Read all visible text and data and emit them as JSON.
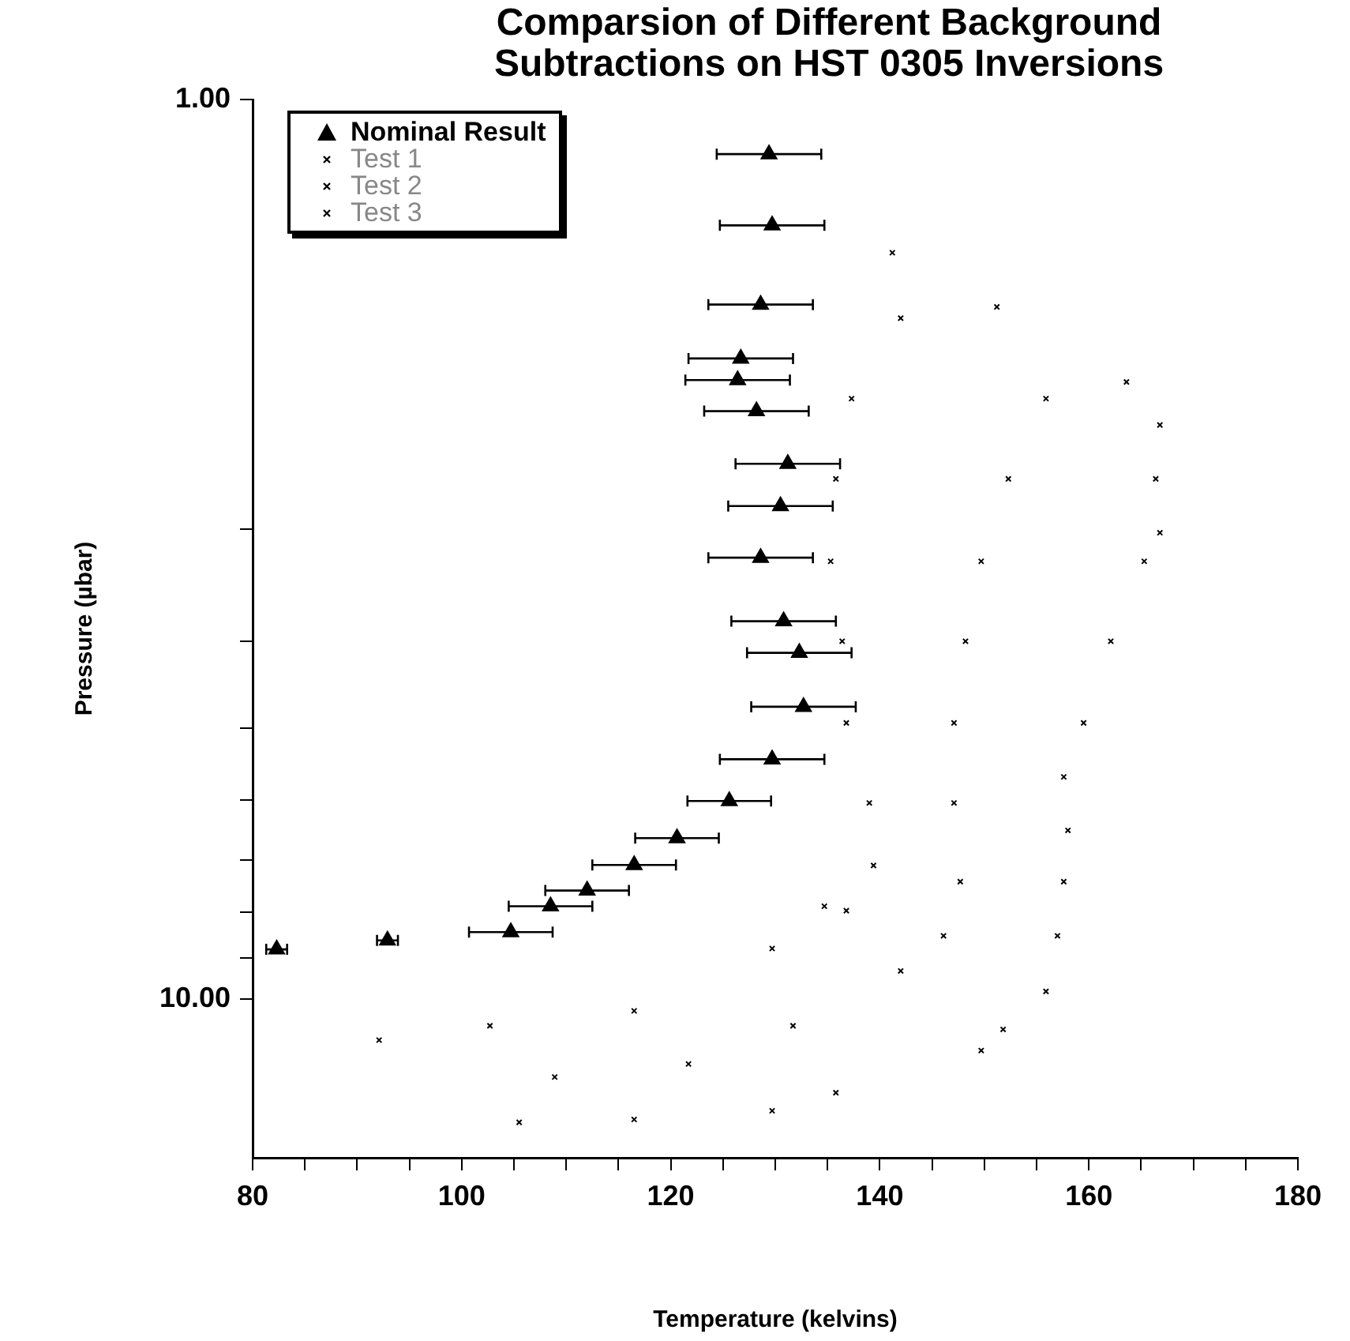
{
  "chart_data": {
    "type": "scatter",
    "title": "Comparsion of Different Background Subtractions on HST 0305 Inversions",
    "xlabel": "Temperature (kelvins)",
    "ylabel": "Pressure (µbar)",
    "xlim": [
      80,
      180
    ],
    "xticks": [
      80,
      {
        "value": 85,
        "label": null
      },
      {
        "value": 90,
        "label": null
      },
      {
        "value": 95,
        "label": null
      },
      100,
      {
        "value": 105,
        "label": null
      },
      {
        "value": 110,
        "label": null
      },
      {
        "value": 115,
        "label": null
      },
      120,
      {
        "value": 125,
        "label": null
      },
      {
        "value": 130,
        "label": null
      },
      {
        "value": 135,
        "label": null
      },
      140,
      {
        "value": 145,
        "label": null
      },
      {
        "value": 150,
        "label": null
      },
      {
        "value": 155,
        "label": null
      },
      160,
      {
        "value": 165,
        "label": null
      },
      {
        "value": 170,
        "label": null
      },
      {
        "value": 175,
        "label": null
      },
      180
    ],
    "ylim": [
      15,
      1
    ],
    "yticks": [
      {
        "value": 1,
        "label": "1.00"
      },
      {
        "value": 3,
        "label": null
      },
      {
        "value": 4,
        "label": null
      },
      {
        "value": 5,
        "label": null
      },
      {
        "value": 6,
        "label": null
      },
      {
        "value": 7,
        "label": null
      },
      {
        "value": 8,
        "label": null
      },
      {
        "value": 9,
        "label": null
      },
      {
        "value": 10,
        "label": "10.00"
      }
    ],
    "log": "y",
    "grid": false,
    "legend": "top left",
    "marker": "triangle",
    "series": [
      {
        "name": "Nominal Result",
        "color": "#000000",
        "x": [
          129.4,
          129.7,
          128.6,
          126.7,
          126.4,
          128.2,
          131.2,
          130.5,
          128.6,
          130.8,
          132.3,
          132.7,
          129.7,
          125.6,
          120.6,
          116.5,
          112.0,
          108.5,
          104.7,
          92.9,
          82.3
        ],
        "values": [
          1.15,
          1.38,
          1.69,
          1.94,
          2.05,
          2.22,
          2.54,
          2.83,
          3.23,
          3.8,
          4.12,
          4.73,
          5.41,
          6.02,
          6.62,
          7.09,
          7.57,
          7.88,
          8.42,
          8.6,
          8.8
        ],
        "xerrors": [
          5,
          5,
          5,
          5,
          5,
          5,
          5,
          5,
          5,
          5,
          5,
          5,
          5,
          4,
          4,
          4,
          4,
          4,
          4,
          1,
          1
        ]
      },
      {
        "name": "Test 1",
        "color": "#000000",
        "marker": "cross",
        "x": [
          141.2,
          142,
          137.3,
          135.8,
          135.3,
          136.4,
          136.8,
          139,
          139.4,
          136.8,
          134.7,
          129.7,
          116.5,
          102.7,
          92.1,
          105.5
        ],
        "values": [
          1.48,
          1.75,
          2.15,
          2.64,
          3.26,
          4.0,
          4.93,
          6.05,
          7.1,
          7.97,
          7.88,
          8.78,
          10.3,
          10.7,
          11.1,
          13.7
        ]
      },
      {
        "name": "Test 2",
        "color": "#000000",
        "marker": "cross",
        "x": [
          151.2,
          155.9,
          152.3,
          149.7,
          148.2,
          147.1,
          147.1,
          147.7,
          146.1,
          142,
          131.7,
          121.7,
          108.9,
          116.5
        ],
        "values": [
          1.7,
          2.15,
          2.64,
          3.26,
          4.0,
          4.93,
          6.05,
          7.4,
          8.5,
          9.3,
          10.7,
          11.8,
          12.2,
          13.6
        ]
      },
      {
        "name": "Test 3",
        "color": "#000000",
        "marker": "cross",
        "x": [
          163.6,
          166.8,
          166.4,
          166.8,
          165.3,
          162.1,
          159.5,
          157.6,
          158,
          157.6,
          157,
          155.9,
          151.8,
          149.7,
          135.8,
          129.7
        ],
        "values": [
          2.06,
          2.3,
          2.64,
          3.03,
          3.26,
          4.0,
          4.93,
          5.66,
          6.49,
          7.4,
          8.5,
          9.8,
          10.8,
          11.4,
          12.7,
          13.3
        ]
      }
    ]
  }
}
